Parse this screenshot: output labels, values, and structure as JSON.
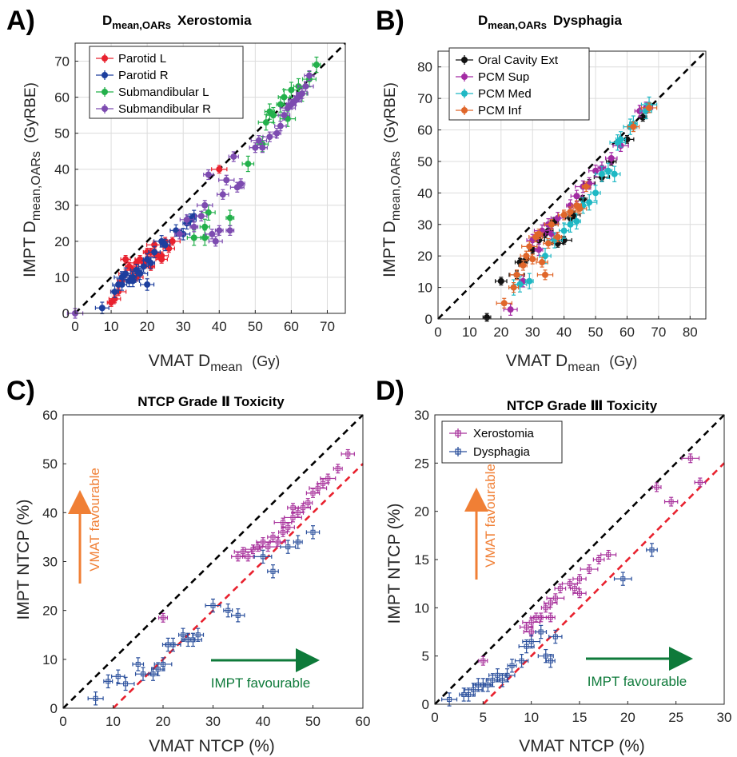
{
  "colors": {
    "parotid_l": "#e8212e",
    "parotid_r": "#1d3f9e",
    "submand_l": "#23b04b",
    "submand_r": "#7d4bb0",
    "oral_cavity": "#111111",
    "pcm_sup": "#a32ba3",
    "pcm_med": "#1fb8c4",
    "pcm_inf": "#e0662a",
    "xerostomia": "#a8329c",
    "dysphagia": "#2a4f9c",
    "identity_line": "#000000",
    "offset_line": "#e8212e",
    "vmat_arrow": "#f07f35",
    "impt_arrow": "#0e7a3a"
  },
  "panels": {
    "A": {
      "letter": "A)",
      "title_main": "D",
      "title_sub": "mean,OARs",
      "title_tail": "Xerostomia",
      "xlabel_main": "VMAT D",
      "xlabel_sub": "mean",
      "xlabel_unit": "(Gy)",
      "ylabel_main": "IMPT D",
      "ylabel_sub": "mean,OARs",
      "ylabel_unit": "(GyRBE)",
      "legend": [
        "Parotid L",
        "Parotid R",
        "Submandibular L",
        "Submandibular R"
      ]
    },
    "B": {
      "letter": "B)",
      "title_main": "D",
      "title_sub": "mean,OARs",
      "title_tail": "Dysphagia",
      "xlabel_main": "VMAT D",
      "xlabel_sub": "mean",
      "xlabel_unit": "(Gy)",
      "ylabel_main": "IMPT D",
      "ylabel_sub": "mean,OARs",
      "ylabel_unit": "(GyRBE)",
      "legend": [
        "Oral Cavity Ext",
        "PCM Sup",
        "PCM Med",
        "PCM Inf"
      ]
    },
    "C": {
      "letter": "C)",
      "title": "NTCP Grade Ⅱ Toxicity",
      "xlabel": "VMAT NTCP (%)",
      "ylabel": "IMPT NTCP (%)",
      "vmat_annot": "VMAT favourable",
      "impt_annot": "IMPT favourable"
    },
    "D": {
      "letter": "D)",
      "title": "NTCP Grade Ⅲ Toxicity",
      "xlabel": "VMAT NTCP (%)",
      "ylabel": "IMPT NTCP (%)",
      "vmat_annot": "VMAT favourable",
      "impt_annot": "IMPT favourable",
      "legend": [
        "Xerostomia",
        "Dysphagia"
      ]
    }
  },
  "chart_data": [
    {
      "panel": "A",
      "type": "scatter",
      "title": "Dmean,OARs Xerostomia",
      "xlabel": "VMAT Dmean (Gy)",
      "ylabel": "IMPT Dmean,OARs (GyRBE)",
      "xlim": [
        0,
        75
      ],
      "ylim": [
        0,
        75
      ],
      "xticks": [
        0,
        10,
        20,
        30,
        40,
        50,
        60,
        70
      ],
      "yticks": [
        0,
        10,
        20,
        30,
        40,
        50,
        60,
        70
      ],
      "grid": true,
      "legend_position": "top-left",
      "reference_lines": [
        {
          "style": "dashed",
          "color": "black",
          "slope": 1,
          "intercept": 0
        }
      ],
      "series": [
        {
          "name": "Parotid L",
          "color_key": "parotid_l",
          "x": [
            10,
            11,
            12,
            13,
            14,
            15,
            16,
            17,
            18,
            19,
            20,
            21,
            22,
            23,
            24,
            25,
            26,
            27,
            14,
            17,
            21,
            24,
            40
          ],
          "y": [
            3,
            4,
            6,
            9,
            11,
            13,
            12,
            14,
            15,
            14,
            17,
            17,
            19,
            16,
            16,
            20,
            18,
            20,
            15,
            10,
            13,
            15,
            40
          ]
        },
        {
          "name": "Parotid R",
          "color_key": "parotid_r",
          "x": [
            7.5,
            11,
            12,
            13,
            14,
            15,
            16,
            17,
            18,
            19,
            20,
            21,
            22,
            24,
            25,
            30,
            31,
            32,
            33,
            13,
            16,
            20,
            28
          ],
          "y": [
            1.5,
            6,
            8,
            10,
            11,
            9,
            10,
            12,
            11,
            13,
            8,
            14,
            17,
            20,
            19,
            22,
            25,
            26,
            27,
            8,
            9,
            15,
            23
          ]
        },
        {
          "name": "Submandibular L",
          "color_key": "submand_l",
          "x": [
            36,
            37,
            43,
            48,
            53,
            54,
            55,
            57,
            58,
            60,
            62,
            65,
            67,
            52,
            59,
            63,
            33,
            36
          ],
          "y": [
            24,
            28,
            26.5,
            41.5,
            53,
            56,
            55,
            58,
            60,
            62,
            63,
            65,
            69,
            47,
            54,
            61,
            21,
            21
          ]
        },
        {
          "name": "Submandibular R",
          "color_key": "submand_r",
          "x": [
            0,
            29,
            31,
            33,
            35,
            36,
            37,
            38,
            40,
            41,
            42,
            44,
            45,
            46,
            50,
            51,
            52,
            54,
            56,
            58,
            59,
            60,
            61,
            62,
            63,
            64,
            65,
            39,
            43,
            57
          ],
          "y": [
            0,
            22,
            26,
            24,
            27,
            30,
            38.5,
            22,
            23,
            33,
            37,
            43.5,
            35,
            36,
            46,
            48,
            46,
            49,
            50,
            55,
            57,
            58,
            59,
            60,
            61,
            63,
            66,
            20,
            23,
            52
          ]
        }
      ]
    },
    {
      "panel": "B",
      "type": "scatter",
      "title": "Dmean,OARs Dysphagia",
      "xlabel": "VMAT Dmean (Gy)",
      "ylabel": "IMPT Dmean,OARs (GyRBE)",
      "xlim": [
        0,
        85
      ],
      "ylim": [
        0,
        85
      ],
      "xticks": [
        0,
        10,
        20,
        30,
        40,
        50,
        60,
        70,
        80
      ],
      "yticks": [
        0,
        10,
        20,
        30,
        40,
        50,
        60,
        70,
        80
      ],
      "grid": true,
      "legend_position": "top-left",
      "reference_lines": [
        {
          "style": "dashed",
          "color": "black",
          "slope": 1,
          "intercept": 0
        }
      ],
      "series": [
        {
          "name": "Oral Cavity Ext",
          "color_key": "oral_cavity",
          "x": [
            15.5,
            20,
            25,
            26,
            28,
            30,
            32,
            34,
            35,
            36,
            37,
            38,
            40,
            42,
            43,
            46,
            48,
            52,
            55,
            60,
            65
          ],
          "y": [
            0.5,
            12,
            14,
            18,
            19,
            22,
            25,
            27,
            28,
            30,
            31,
            24,
            25,
            32,
            33,
            38,
            43,
            45,
            50,
            57,
            64
          ]
        },
        {
          "name": "PCM Sup",
          "color_key": "pcm_sup",
          "x": [
            23,
            27,
            30,
            33,
            35,
            38,
            42,
            44,
            46,
            48,
            50,
            52,
            55,
            58,
            64,
            66,
            32,
            36
          ],
          "y": [
            3,
            12,
            25,
            28,
            30,
            32,
            36,
            39,
            42,
            43,
            47,
            48,
            51,
            55,
            66,
            67,
            22,
            27
          ]
        },
        {
          "name": "PCM Med",
          "color_key": "pcm_med",
          "x": [
            24,
            26,
            29,
            34,
            37,
            40,
            42,
            44,
            46,
            48,
            50,
            52,
            54,
            56,
            57,
            58,
            61,
            62,
            66,
            67
          ],
          "y": [
            10,
            11,
            12,
            20,
            25,
            28,
            30,
            31,
            36,
            37,
            40,
            46,
            47,
            46,
            56,
            57,
            61,
            62,
            66,
            68
          ],
          "unlabeled_extra": []
        },
        {
          "name": "PCM Inf",
          "color_key": "pcm_inf",
          "x": [
            21,
            24,
            25,
            27,
            28,
            29,
            30,
            31,
            32,
            33,
            34,
            35,
            36,
            38,
            40,
            42,
            44,
            45,
            47,
            62,
            67
          ],
          "y": [
            5,
            10,
            14,
            17,
            20,
            23,
            19,
            26,
            27,
            18,
            14,
            24,
            30,
            26,
            33,
            34,
            36,
            35,
            42,
            61,
            67
          ]
        }
      ]
    },
    {
      "panel": "C",
      "type": "scatter",
      "title": "NTCP Grade Ⅱ Toxicity",
      "xlabel": "VMAT NTCP (%)",
      "ylabel": "IMPT NTCP (%)",
      "xlim": [
        0,
        60
      ],
      "ylim": [
        0,
        60
      ],
      "xticks": [
        0,
        10,
        20,
        30,
        40,
        50,
        60
      ],
      "yticks": [
        0,
        10,
        20,
        30,
        40,
        50,
        60
      ],
      "grid": false,
      "reference_lines": [
        {
          "style": "dashed",
          "color": "black",
          "slope": 1,
          "intercept": 0
        },
        {
          "style": "dashed",
          "color": "red",
          "slope": 1,
          "intercept": -10
        }
      ],
      "series": [
        {
          "name": "Xerostomia",
          "color_key": "xerostomia",
          "x": [
            20,
            35,
            36,
            37,
            38,
            39,
            40,
            41,
            42,
            43,
            44,
            45,
            46,
            47,
            48,
            49,
            50,
            51,
            52,
            53,
            55,
            57,
            44,
            46
          ],
          "y": [
            18.5,
            31,
            32,
            31,
            32.5,
            33,
            34,
            33,
            35,
            34,
            36,
            37,
            39,
            40,
            41,
            42,
            44,
            45,
            46,
            47,
            49,
            52,
            38,
            41
          ]
        },
        {
          "name": "Dysphagia",
          "color_key": "dysphagia",
          "x": [
            6.5,
            9,
            11,
            12.5,
            15,
            16,
            18,
            19,
            20,
            21,
            22,
            24,
            25,
            26,
            27,
            30,
            33,
            35,
            40,
            42,
            45,
            47,
            50
          ],
          "y": [
            2,
            5.5,
            6.5,
            5,
            9,
            7,
            7,
            8,
            9,
            13,
            13,
            15,
            14,
            14,
            15,
            21,
            20,
            19,
            31,
            28,
            33,
            34,
            36
          ]
        }
      ]
    },
    {
      "panel": "D",
      "type": "scatter",
      "title": "NTCP Grade Ⅲ Toxicity",
      "xlabel": "VMAT NTCP (%)",
      "ylabel": "IMPT NTCP (%)",
      "xlim": [
        0,
        30
      ],
      "ylim": [
        0,
        30
      ],
      "xticks": [
        0,
        5,
        10,
        15,
        20,
        25,
        30
      ],
      "yticks": [
        0,
        5,
        10,
        15,
        20,
        25,
        30
      ],
      "grid": false,
      "legend_position": "top-left",
      "reference_lines": [
        {
          "style": "dashed",
          "color": "black",
          "slope": 1,
          "intercept": 0
        },
        {
          "style": "dashed",
          "color": "red",
          "slope": 1,
          "intercept": -5
        }
      ],
      "series": [
        {
          "name": "Xerostomia",
          "color_key": "xerostomia",
          "x": [
            5,
            9.5,
            10,
            10.5,
            11,
            11.5,
            12,
            12.5,
            13,
            14,
            14.5,
            15,
            16,
            17,
            18,
            23,
            24.5,
            26.5,
            27.5,
            10,
            12,
            15
          ],
          "y": [
            4.5,
            8,
            8.5,
            9,
            9,
            10,
            10.5,
            11,
            12,
            12.5,
            12,
            13,
            14,
            15,
            15.5,
            22.5,
            21,
            25.5,
            23,
            7.5,
            9,
            11.5
          ]
        },
        {
          "name": "Dysphagia",
          "color_key": "dysphagia",
          "x": [
            1.5,
            3,
            3.5,
            4,
            4.5,
            5,
            5.5,
            6,
            6.5,
            7,
            7.5,
            8,
            9,
            10,
            11,
            11.5,
            12,
            12.5,
            19.5,
            22.5,
            9.5
          ],
          "y": [
            0.5,
            1,
            1,
            1.5,
            2,
            2,
            2,
            2.5,
            3,
            2.5,
            3,
            4,
            4.5,
            6.5,
            7.5,
            5,
            4.5,
            7,
            13,
            16,
            6
          ]
        }
      ]
    }
  ]
}
